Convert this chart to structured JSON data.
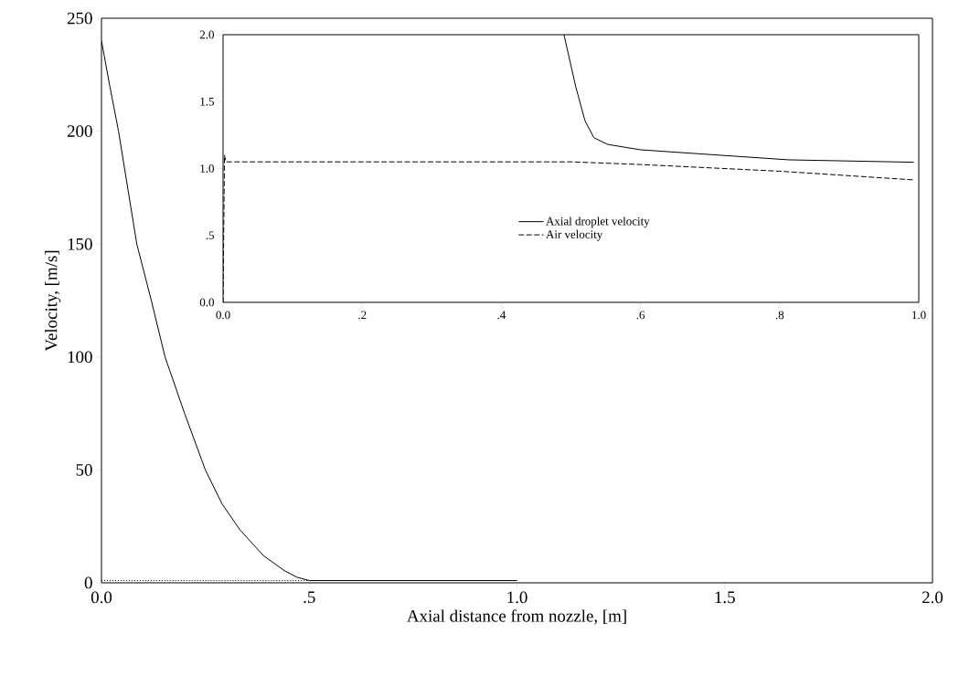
{
  "chart_data": [
    {
      "type": "line",
      "xlabel": "Axial distance from nozzle, [m]",
      "ylabel": "Velocity, [m/s]",
      "xlim": [
        0,
        2
      ],
      "ylim": [
        0,
        250
      ],
      "xticks": [
        {
          "value": 0,
          "label": "0.0"
        },
        {
          "value": 0.5,
          "label": ".5"
        },
        {
          "value": 1,
          "label": "1.0"
        },
        {
          "value": 1.5,
          "label": "1.5"
        },
        {
          "value": 2,
          "label": "2.0"
        }
      ],
      "yticks": [
        0,
        50,
        100,
        150,
        200,
        250
      ],
      "series": [
        {
          "color": "#000000",
          "line_style": "solid",
          "x": [
            0,
            0.02,
            0.041,
            0.085,
            0.12,
            0.153,
            0.2,
            0.25,
            0.29,
            0.333,
            0.39,
            0.44,
            0.47,
            0.5,
            0.55,
            0.6,
            0.8,
            1.0
          ],
          "values": [
            240,
            220,
            200,
            150,
            125,
            100,
            75,
            50,
            35,
            23.5,
            12,
            5.4,
            2.5,
            1,
            1,
            1,
            1,
            1
          ]
        },
        {
          "color": "#000000",
          "line_style": "dotted",
          "x": [
            0,
            0.5,
            0.6,
            0.8,
            1.0
          ],
          "values": [
            1,
            1,
            1,
            1,
            1
          ]
        }
      ]
    },
    {
      "type": "line",
      "xlim": [
        0,
        1
      ],
      "ylim": [
        0,
        2
      ],
      "legend": "bottom",
      "xticks": [
        {
          "value": 0,
          "label": "0.0"
        },
        {
          "value": 0.2,
          "label": ".2"
        },
        {
          "value": 0.4,
          "label": ".4"
        },
        {
          "value": 0.6,
          "label": ".6"
        },
        {
          "value": 0.8,
          "label": ".8"
        },
        {
          "value": 1,
          "label": "1.0"
        }
      ],
      "yticks": [
        {
          "value": 0,
          "label": "0.0"
        },
        {
          "value": 0.5,
          "label": ".5"
        },
        {
          "value": 1,
          "label": "1.0"
        },
        {
          "value": 1.5,
          "label": "1.5"
        },
        {
          "value": 2,
          "label": "2.0"
        }
      ],
      "series": [
        {
          "name": "Axial droplet velocity",
          "color": "#000000",
          "line_style": "solid",
          "x": [
            0.49,
            0.507,
            0.52,
            0.533,
            0.553,
            0.6,
            0.713,
            0.813,
            0.993
          ],
          "values": [
            2.0,
            1.61,
            1.36,
            1.23,
            1.18,
            1.14,
            1.1,
            1.065,
            1.047
          ]
        },
        {
          "name": "Air velocity",
          "color": "#000000",
          "line_style": "dashed",
          "x": [
            0,
            0.002,
            0.004,
            0.5,
            0.6,
            0.8,
            0.993
          ],
          "values": [
            0,
            1.1,
            1.05,
            1.05,
            1.03,
            0.98,
            0.915
          ]
        }
      ]
    }
  ]
}
